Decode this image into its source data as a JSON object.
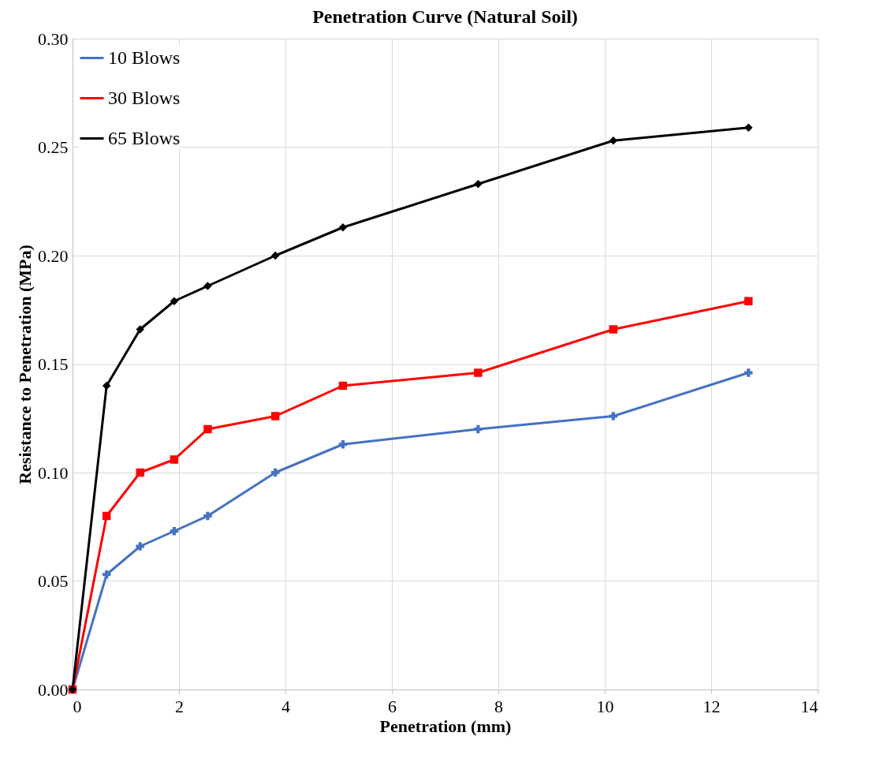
{
  "chart_data": {
    "type": "line",
    "title": "Penetration Curve (Natural Soil)",
    "xlabel": "Penetration (mm)",
    "ylabel": "Resistance to Penetration (MPa)",
    "x": [
      0,
      0.64,
      1.27,
      1.91,
      2.54,
      3.81,
      5.08,
      7.62,
      10.16,
      12.7
    ],
    "series": [
      {
        "name": "10 Blows",
        "color": "#4472c4",
        "marker": "cross",
        "values": [
          0,
          0.053,
          0.066,
          0.073,
          0.08,
          0.1,
          0.113,
          0.12,
          0.126,
          0.146
        ]
      },
      {
        "name": "30 Blows",
        "color": "#ff0000",
        "marker": "square",
        "values": [
          0,
          0.08,
          0.1,
          0.106,
          0.12,
          0.126,
          0.14,
          0.146,
          0.166,
          0.179
        ]
      },
      {
        "name": "65 Blows",
        "color": "#000000",
        "marker": "diamond",
        "values": [
          0,
          0.14,
          0.166,
          0.179,
          0.186,
          0.2,
          0.213,
          0.233,
          0.253,
          0.259
        ]
      }
    ],
    "xlim": [
      0,
      14
    ],
    "xticks": [
      0,
      2,
      4,
      6,
      8,
      10,
      12,
      14
    ],
    "ylim": [
      0,
      0.3
    ],
    "yticks": [
      {
        "value": 0,
        "label": "0.00"
      },
      {
        "value": 0.05,
        "label": "0.05"
      },
      {
        "value": 0.1,
        "label": "0.10"
      },
      {
        "value": 0.15,
        "label": "0.15"
      },
      {
        "value": 0.2,
        "label": "0.20"
      },
      {
        "value": 0.25,
        "label": "0.25"
      },
      {
        "value": 0.3,
        "label": "0.30"
      }
    ],
    "grid": true,
    "legend": "top left",
    "line_style": "solid"
  }
}
